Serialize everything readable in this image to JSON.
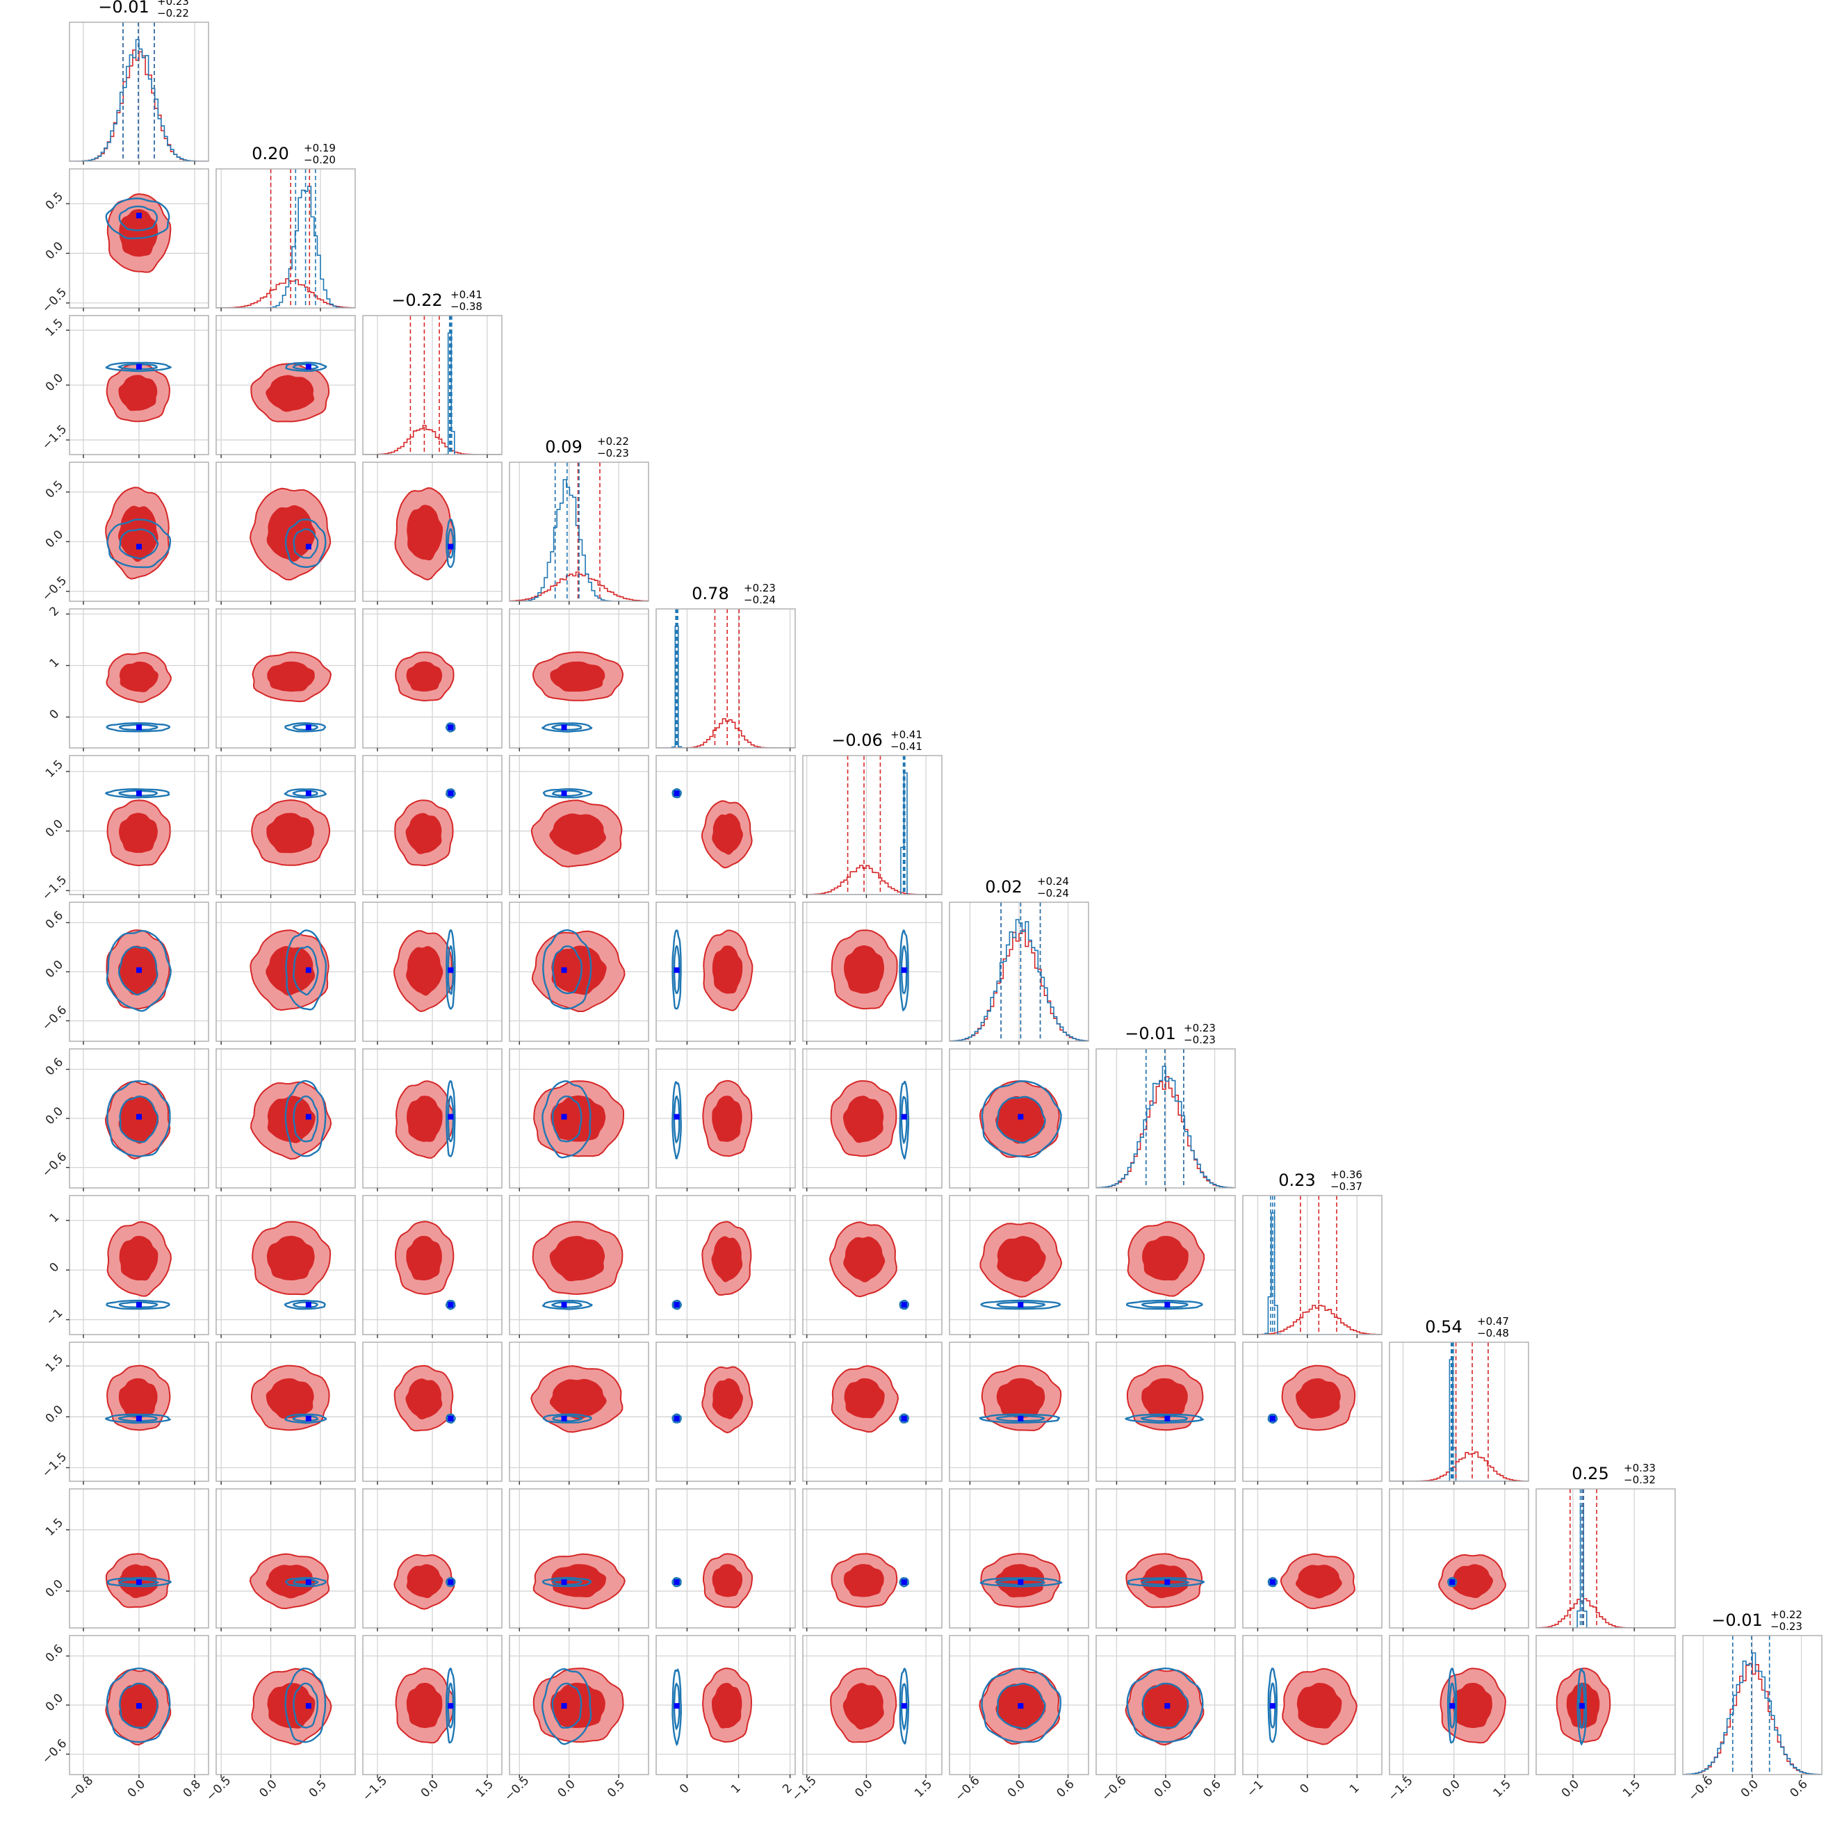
{
  "colors": {
    "red_line": "#d62728",
    "red_outer": "#ef9a9a",
    "red_inner": "#d62728",
    "blue": "#1f77b4",
    "truth_marker": "#0000ff",
    "grid": "#d4d4d4"
  },
  "chart_data": {
    "type": "corner",
    "dimensions": 12,
    "grid": true,
    "marginal_titles": [
      {
        "main": "−0.01",
        "plus": "+0.23",
        "minus": "−0.22"
      },
      {
        "main": "0.20",
        "plus": "+0.19",
        "minus": "−0.20"
      },
      {
        "main": "−0.22",
        "plus": "+0.41",
        "minus": "−0.38"
      },
      {
        "main": "0.09",
        "plus": "+0.22",
        "minus": "−0.23"
      },
      {
        "main": "0.78",
        "plus": "+0.23",
        "minus": "−0.24"
      },
      {
        "main": "−0.06",
        "plus": "+0.41",
        "minus": "−0.41"
      },
      {
        "main": "0.02",
        "plus": "+0.24",
        "minus": "−0.24"
      },
      {
        "main": "−0.01",
        "plus": "+0.23",
        "minus": "−0.23"
      },
      {
        "main": "0.23",
        "plus": "+0.36",
        "minus": "−0.37"
      },
      {
        "main": "0.54",
        "plus": "+0.47",
        "minus": "−0.48"
      },
      {
        "main": "0.25",
        "plus": "+0.33",
        "minus": "−0.32"
      },
      {
        "main": "−0.01",
        "plus": "+0.22",
        "minus": "−0.23"
      }
    ],
    "axis_ranges": [
      [
        -1.0,
        1.0
      ],
      [
        -0.55,
        0.85
      ],
      [
        -1.9,
        1.9
      ],
      [
        -0.6,
        0.8
      ],
      [
        -0.6,
        2.1
      ],
      [
        -1.6,
        1.9
      ],
      [
        -0.85,
        0.85
      ],
      [
        -0.85,
        0.85
      ],
      [
        -1.3,
        1.5
      ],
      [
        -1.9,
        2.2
      ],
      [
        -0.9,
        2.5
      ],
      [
        -0.85,
        0.85
      ]
    ],
    "x_tick_labels": [
      [
        "−0.8",
        "0.0",
        "0.8"
      ],
      [
        "−0.5",
        "0.0",
        "0.5"
      ],
      [
        "−1.5",
        "0.0",
        "1.5"
      ],
      [
        "−0.5",
        "0.0",
        "0.5"
      ],
      [
        "0",
        "1",
        "2"
      ],
      [
        "−1.5",
        "0.0",
        "1.5"
      ],
      [
        "−0.6",
        "0.0",
        "0.6"
      ],
      [
        "−0.6",
        "0.0",
        "0.6"
      ],
      [
        "−1",
        "0",
        "1"
      ],
      [
        "−1.5",
        "0.0",
        "1.5"
      ],
      [
        "0.0",
        "1.5"
      ],
      [
        "−0.6",
        "0.0",
        "0.6"
      ]
    ],
    "x_tick_values": [
      [
        -0.8,
        0.0,
        0.8
      ],
      [
        -0.5,
        0.0,
        0.5
      ],
      [
        -1.5,
        0.0,
        1.5
      ],
      [
        -0.5,
        0.0,
        0.5
      ],
      [
        0,
        1,
        2
      ],
      [
        -1.5,
        0.0,
        1.5
      ],
      [
        -0.6,
        0.0,
        0.6
      ],
      [
        -0.6,
        0.0,
        0.6
      ],
      [
        -1,
        0,
        1
      ],
      [
        -1.5,
        0.0,
        1.5
      ],
      [
        0.0,
        1.5
      ],
      [
        -0.6,
        0.0,
        0.6
      ]
    ],
    "y_tick_labels": [
      [],
      [
        "−0.5",
        "0.0",
        "0.5"
      ],
      [
        "−1.5",
        "0.0",
        "1.5"
      ],
      [
        "−0.5",
        "0.0",
        "0.5"
      ],
      [
        "0",
        "1",
        "2"
      ],
      [
        "−1.5",
        "0.0",
        "1.5"
      ],
      [
        "−0.6",
        "0.0",
        "0.6"
      ],
      [
        "−0.6",
        "0.0",
        "0.6"
      ],
      [
        "−1",
        "0",
        "1"
      ],
      [
        "−1.5",
        "0.0",
        "1.5"
      ],
      [
        "0.0",
        "1.5"
      ],
      [
        "−0.6",
        "0.0",
        "0.6"
      ]
    ],
    "y_tick_values": [
      [],
      [
        -0.5,
        0.0,
        0.5
      ],
      [
        -1.5,
        0.0,
        1.5
      ],
      [
        -0.5,
        0.0,
        0.5
      ],
      [
        0,
        1,
        2
      ],
      [
        -1.5,
        0.0,
        1.5
      ],
      [
        -0.6,
        0.0,
        0.6
      ],
      [
        -0.6,
        0.0,
        0.6
      ],
      [
        -1,
        0,
        1
      ],
      [
        -1.5,
        0.0,
        1.5
      ],
      [
        0.0,
        1.5
      ],
      [
        -0.6,
        0.0,
        0.6
      ]
    ],
    "truth_values": [
      0.0,
      0.38,
      0.5,
      -0.05,
      -0.2,
      0.95,
      0.02,
      0.02,
      -0.7,
      -0.05,
      0.22,
      -0.01
    ],
    "series": [
      {
        "color": "red",
        "medians": [
          -0.01,
          0.2,
          -0.22,
          0.09,
          0.78,
          -0.06,
          0.02,
          -0.01,
          0.23,
          0.54,
          0.25,
          -0.01
        ],
        "plus": [
          0.23,
          0.19,
          0.41,
          0.22,
          0.23,
          0.41,
          0.24,
          0.23,
          0.36,
          0.47,
          0.33,
          0.22
        ],
        "minus": [
          0.22,
          0.2,
          0.38,
          0.23,
          0.24,
          0.41,
          0.24,
          0.23,
          0.37,
          0.48,
          0.32,
          0.23
        ]
      },
      {
        "color": "blue",
        "medians": [
          -0.01,
          0.35,
          0.5,
          -0.02,
          -0.2,
          0.95,
          0.02,
          -0.01,
          -0.7,
          -0.05,
          0.22,
          -0.01
        ],
        "plus": [
          0.23,
          0.1,
          0.03,
          0.12,
          0.02,
          0.02,
          0.24,
          0.23,
          0.04,
          0.03,
          0.04,
          0.22
        ],
        "minus": [
          0.22,
          0.1,
          0.03,
          0.12,
          0.02,
          0.02,
          0.24,
          0.23,
          0.04,
          0.03,
          0.04,
          0.23
        ]
      }
    ]
  }
}
